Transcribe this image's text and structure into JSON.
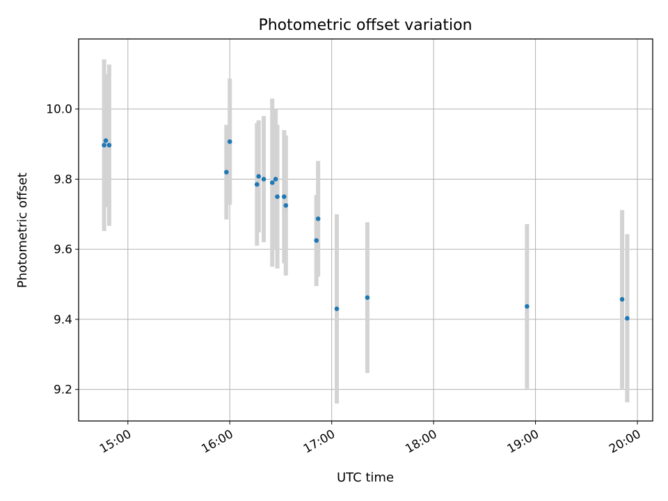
{
  "chart_data": {
    "type": "scatter",
    "title": "Photometric offset variation",
    "xlabel": "UTC time",
    "ylabel": "Photometric offset",
    "x_ticks": [
      "15:00",
      "16:00",
      "17:00",
      "18:00",
      "19:00",
      "20:00"
    ],
    "xlim": [
      "14:31",
      "20:09"
    ],
    "y_ticks": [
      "9.2",
      "9.4",
      "9.6",
      "9.8",
      "10.0"
    ],
    "ylim": [
      9.11,
      10.2
    ],
    "grid": true,
    "marker_color": "#1f77b4",
    "errorbar_color": "#d3d3d3",
    "points": [
      {
        "t": "14:46",
        "y": 9.897,
        "err": 0.245
      },
      {
        "t": "14:47",
        "y": 9.91,
        "err": 0.19
      },
      {
        "t": "14:49",
        "y": 9.897,
        "err": 0.23
      },
      {
        "t": "15:58",
        "y": 9.82,
        "err": 0.135
      },
      {
        "t": "16:00",
        "y": 9.907,
        "err": 0.18
      },
      {
        "t": "16:16",
        "y": 9.785,
        "err": 0.175
      },
      {
        "t": "16:17",
        "y": 9.808,
        "err": 0.16
      },
      {
        "t": "16:20",
        "y": 9.8,
        "err": 0.18
      },
      {
        "t": "16:25",
        "y": 9.79,
        "err": 0.24
      },
      {
        "t": "16:27",
        "y": 9.8,
        "err": 0.2
      },
      {
        "t": "16:28",
        "y": 9.75,
        "err": 0.205
      },
      {
        "t": "16:32",
        "y": 9.75,
        "err": 0.19
      },
      {
        "t": "16:33",
        "y": 9.725,
        "err": 0.2
      },
      {
        "t": "16:51",
        "y": 9.625,
        "err": 0.13
      },
      {
        "t": "16:52",
        "y": 9.687,
        "err": 0.165
      },
      {
        "t": "17:03",
        "y": 9.43,
        "err": 0.27
      },
      {
        "t": "17:21",
        "y": 9.462,
        "err": 0.215
      },
      {
        "t": "18:55",
        "y": 9.437,
        "err": 0.235
      },
      {
        "t": "19:51",
        "y": 9.457,
        "err": 0.255
      },
      {
        "t": "19:54",
        "y": 9.403,
        "err": 0.24
      }
    ]
  }
}
